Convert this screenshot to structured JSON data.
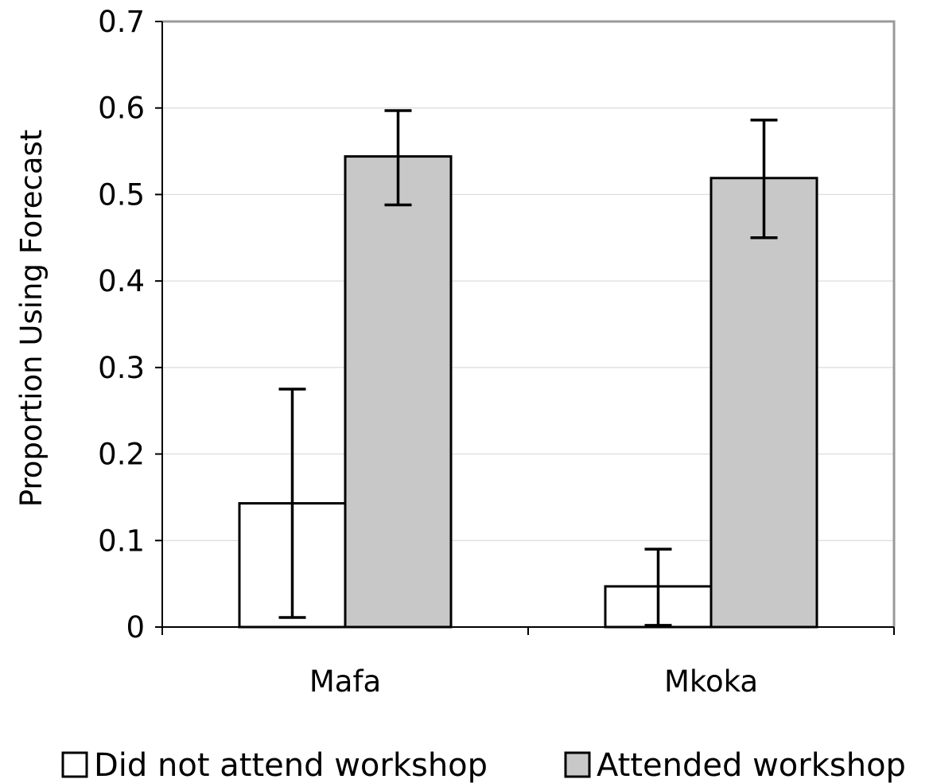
{
  "chart_data": {
    "type": "bar",
    "title": "",
    "ylabel": "Proportion Using Forecast",
    "xlabel": "",
    "ylim": [
      0,
      0.7
    ],
    "yticks": [
      0,
      0.1,
      0.2,
      0.3,
      0.4,
      0.5,
      0.6,
      0.7
    ],
    "ytick_labels": [
      "0",
      "0.1",
      "0.2",
      "0.3",
      "0.4",
      "0.5",
      "0.6",
      "0.7"
    ],
    "categories": [
      "Mafa",
      "Mkoka"
    ],
    "series": [
      {
        "name": "Did not attend workshop",
        "color": "#ffffff",
        "values": [
          0.143,
          0.047
        ],
        "error_low": [
          0.011,
          0.002
        ],
        "error_high": [
          0.275,
          0.09
        ]
      },
      {
        "name": "Attended workshop",
        "color": "#c8c8c8",
        "values": [
          0.544,
          0.519
        ],
        "error_low": [
          0.488,
          0.45
        ],
        "error_high": [
          0.597,
          0.586
        ]
      }
    ],
    "grid": true,
    "gridline_color": "#d4d4d4",
    "frame_color": "#9a9a9a",
    "legend_position": "bottom"
  }
}
